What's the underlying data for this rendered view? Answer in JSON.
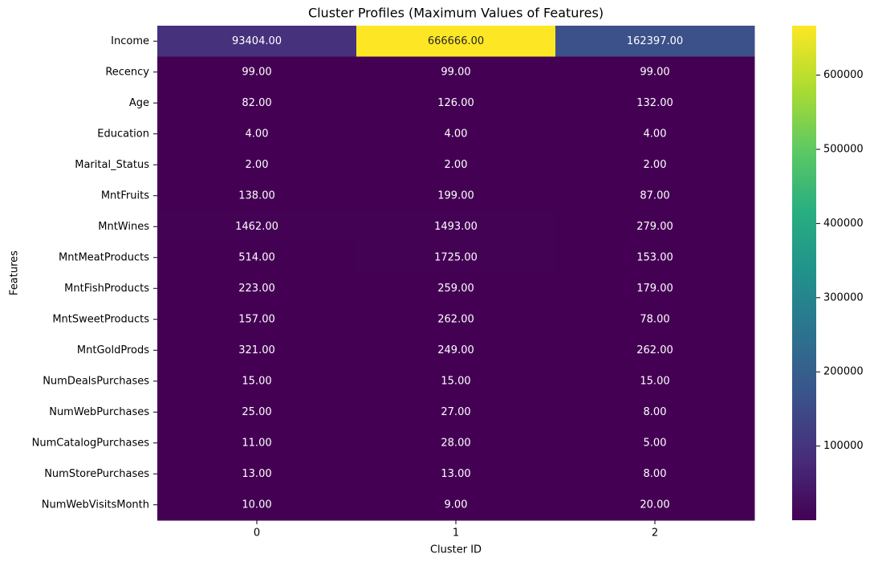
{
  "chart_data": {
    "type": "heatmap",
    "title": "Cluster Profiles (Maximum Values of Features)",
    "x_label": "Cluster ID",
    "y_label": "Features",
    "categories": [
      "0",
      "1",
      "2"
    ],
    "rows": [
      "Income",
      "Recency",
      "Age",
      "Education",
      "Marital_Status",
      "MntFruits",
      "MntWines",
      "MntMeatProducts",
      "MntFishProducts",
      "MntSweetProducts",
      "MntGoldProds",
      "NumDealsPurchases",
      "NumWebPurchases",
      "NumCatalogPurchases",
      "NumStorePurchases",
      "NumWebVisitsMonth"
    ],
    "values": [
      [
        93404,
        666666,
        162397
      ],
      [
        99,
        99,
        99
      ],
      [
        82,
        126,
        132
      ],
      [
        4,
        4,
        4
      ],
      [
        2,
        2,
        2
      ],
      [
        138,
        199,
        87
      ],
      [
        1462,
        1493,
        279
      ],
      [
        514,
        1725,
        153
      ],
      [
        223,
        259,
        179
      ],
      [
        157,
        262,
        78
      ],
      [
        321,
        249,
        262
      ],
      [
        15,
        15,
        15
      ],
      [
        25,
        27,
        8
      ],
      [
        11,
        28,
        5
      ],
      [
        13,
        13,
        8
      ],
      [
        10,
        9,
        20
      ]
    ],
    "value_labels": [
      [
        "93404.00",
        "666666.00",
        "162397.00"
      ],
      [
        "99.00",
        "99.00",
        "99.00"
      ],
      [
        "82.00",
        "126.00",
        "132.00"
      ],
      [
        "4.00",
        "4.00",
        "4.00"
      ],
      [
        "2.00",
        "2.00",
        "2.00"
      ],
      [
        "138.00",
        "199.00",
        "87.00"
      ],
      [
        "1462.00",
        "1493.00",
        "279.00"
      ],
      [
        "514.00",
        "1725.00",
        "153.00"
      ],
      [
        "223.00",
        "259.00",
        "179.00"
      ],
      [
        "157.00",
        "262.00",
        "78.00"
      ],
      [
        "321.00",
        "249.00",
        "262.00"
      ],
      [
        "15.00",
        "15.00",
        "15.00"
      ],
      [
        "25.00",
        "27.00",
        "8.00"
      ],
      [
        "11.00",
        "28.00",
        "5.00"
      ],
      [
        "13.00",
        "13.00",
        "8.00"
      ],
      [
        "10.00",
        "9.00",
        "20.00"
      ]
    ],
    "colormap": [
      "#440154",
      "#472d7b",
      "#3b528b",
      "#2c728e",
      "#21918c",
      "#28ae80",
      "#5ec962",
      "#addc30",
      "#fde725"
    ],
    "clim": [
      2,
      666666
    ],
    "cticks": [
      100000,
      200000,
      300000,
      400000,
      500000,
      600000
    ]
  }
}
